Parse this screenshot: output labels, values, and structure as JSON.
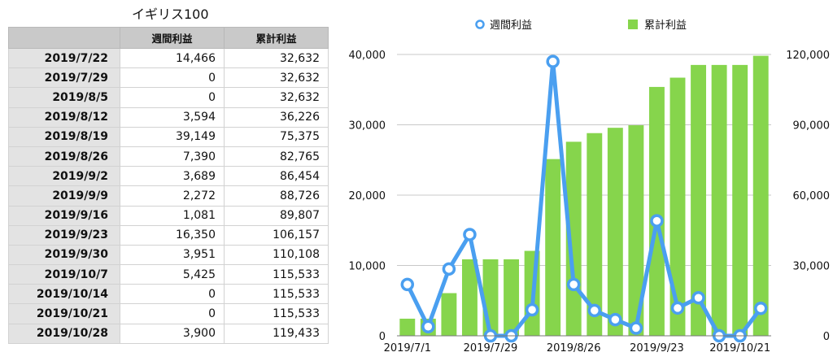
{
  "table": {
    "title": "イギリス100",
    "headers": [
      "",
      "週間利益",
      "累計利益"
    ],
    "rows": [
      [
        "2019/7/22",
        "14,466",
        "32,632"
      ],
      [
        "2019/7/29",
        "0",
        "32,632"
      ],
      [
        "2019/8/5",
        "0",
        "32,632"
      ],
      [
        "2019/8/12",
        "3,594",
        "36,226"
      ],
      [
        "2019/8/19",
        "39,149",
        "75,375"
      ],
      [
        "2019/8/26",
        "7,390",
        "82,765"
      ],
      [
        "2019/9/2",
        "3,689",
        "86,454"
      ],
      [
        "2019/9/9",
        "2,272",
        "88,726"
      ],
      [
        "2019/9/16",
        "1,081",
        "89,807"
      ],
      [
        "2019/9/23",
        "16,350",
        "106,157"
      ],
      [
        "2019/9/30",
        "3,951",
        "110,108"
      ],
      [
        "2019/10/7",
        "5,425",
        "115,533"
      ],
      [
        "2019/10/14",
        "0",
        "115,533"
      ],
      [
        "2019/10/21",
        "0",
        "115,533"
      ],
      [
        "2019/10/28",
        "3,900",
        "119,433"
      ]
    ]
  },
  "chart_data": {
    "type": "bar+line",
    "x_tick_labels": [
      "2019/7/1",
      "2019/7/29",
      "2019/8/26",
      "2019/9/23",
      "2019/10/21"
    ],
    "x_tick_indices": [
      0,
      4,
      8,
      12,
      16
    ],
    "series": [
      {
        "name": "週間利益",
        "type": "line",
        "axis": "left",
        "color": "#4a9ff0",
        "values": [
          7300,
          1300,
          9500,
          14400,
          0,
          0,
          3700,
          39000,
          7300,
          3600,
          2300,
          1100,
          16350,
          3950,
          5400,
          0,
          0,
          3900
        ]
      },
      {
        "name": "累計利益",
        "type": "bar",
        "axis": "right",
        "color": "#86d54c",
        "values": [
          7300,
          7300,
          18200,
          32632,
          32632,
          32632,
          36226,
          75375,
          82765,
          86454,
          88726,
          89807,
          106157,
          110108,
          115533,
          115533,
          115533,
          119433
        ]
      }
    ],
    "y_left": {
      "min": 0,
      "max": 40000,
      "ticks": [
        "0",
        "10,000",
        "20,000",
        "30,000",
        "40,000"
      ]
    },
    "y_right": {
      "min": 0,
      "max": 120000,
      "ticks": [
        "0",
        "30,000",
        "60,000",
        "90,000",
        "120,000"
      ]
    },
    "grid": true,
    "legend_position": "top"
  }
}
